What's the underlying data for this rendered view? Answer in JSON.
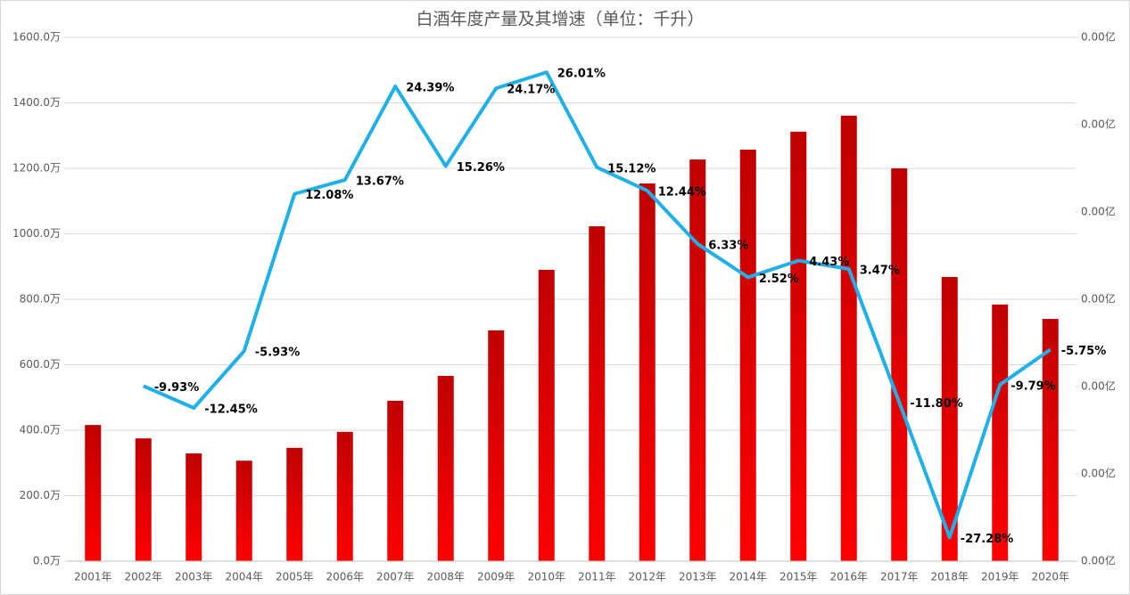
{
  "chart_data": {
    "type": "bar",
    "title": "白酒年度产量及其增速（单位：千升）",
    "categories": [
      "2001年",
      "2002年",
      "2003年",
      "2004年",
      "2005年",
      "2006年",
      "2007年",
      "2008年",
      "2009年",
      "2010年",
      "2011年",
      "2012年",
      "2013年",
      "2014年",
      "2015年",
      "2016年",
      "2017年",
      "2018年",
      "2019年",
      "2020年"
    ],
    "series": [
      {
        "color": "#e00000",
        "values": [
          416,
          375,
          329,
          307,
          346,
          395,
          490,
          566,
          705,
          890,
          1023,
          1154,
          1227,
          1257,
          1312,
          1361,
          1200,
          868,
          784,
          740
        ]
      },
      {
        "type": "line",
        "axis": "y2",
        "color": "#1fb0e8",
        "values": [
          null,
          -9.93,
          -12.45,
          -5.93,
          12.08,
          13.67,
          24.39,
          15.26,
          24.17,
          26.01,
          15.12,
          12.44,
          6.33,
          2.52,
          4.43,
          3.47,
          -11.8,
          -27.28,
          -9.79,
          -5.75
        ],
        "value_labels": [
          null,
          "-9.93%",
          "-12.45%",
          "-5.93%",
          "12.08%",
          "13.67%",
          "24.39%",
          "15.26%",
          "24.17%",
          "26.01%",
          "15.12%",
          "12.44%",
          "6.33%",
          "2.52%",
          "4.43%",
          "3.47%",
          "-11.80%",
          "-27.28%",
          "-9.79%",
          "-5.75%"
        ]
      }
    ],
    "ylim": [
      0,
      1600
    ],
    "yticks": [
      {
        "value": 0,
        "label": "0.0万"
      },
      {
        "value": 200,
        "label": "200.0万"
      },
      {
        "value": 400,
        "label": "400.0万"
      },
      {
        "value": 600,
        "label": "600.0万"
      },
      {
        "value": 800,
        "label": "800.0万"
      },
      {
        "value": 1000,
        "label": "1000.0万"
      },
      {
        "value": 1200,
        "label": "1200.0万"
      },
      {
        "value": 1400,
        "label": "1400.0万"
      },
      {
        "value": 1600,
        "label": "1600.0万"
      }
    ],
    "y2lim": [
      -30,
      30
    ],
    "y2ticks": [
      {
        "value": -30,
        "label": "0.00亿"
      },
      {
        "value": -20,
        "label": "0.00亿"
      },
      {
        "value": -10,
        "label": "0.00亿"
      },
      {
        "value": 0,
        "label": "0.00亿"
      },
      {
        "value": 10,
        "label": "0.00亿"
      },
      {
        "value": 20,
        "label": "0.00亿"
      },
      {
        "value": 30,
        "label": "0.00亿"
      }
    ],
    "grid": true
  }
}
